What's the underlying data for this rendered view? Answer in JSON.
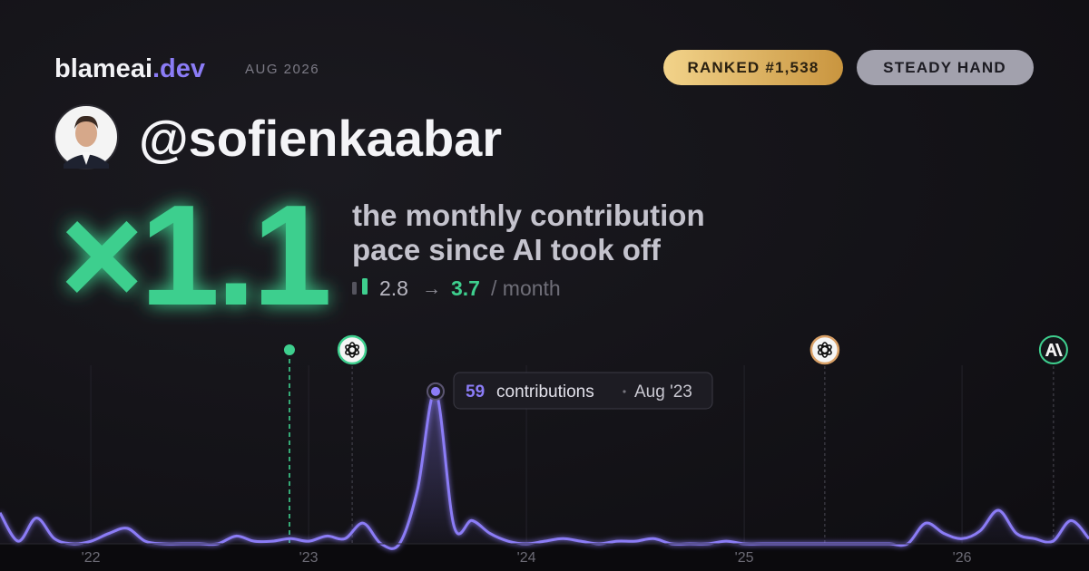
{
  "header": {
    "brand": "blameai",
    "brand_suffix": ".dev",
    "date": "AUG 2026",
    "rank_badge": "RANKED #1,538",
    "style_badge": "STEADY HAND",
    "handle": "@sofienkaabar",
    "multiplier": "×1.1",
    "description": [
      "the monthly contribution",
      "pace since AI took off"
    ],
    "pace_before": 2.8,
    "pace_arrow": "→",
    "pace_after": 3.7,
    "pace_unit": "/ month"
  },
  "chart_data": {
    "type": "line",
    "x": [
      2021.583,
      2021.667,
      2021.75,
      2021.833,
      2021.917,
      2022,
      2022.083,
      2022.167,
      2022.25,
      2022.333,
      2022.417,
      2022.5,
      2022.583,
      2022.667,
      2022.75,
      2022.833,
      2022.917,
      2023,
      2023.083,
      2023.167,
      2023.25,
      2023.333,
      2023.417,
      2023.5,
      2023.583,
      2023.667,
      2023.75,
      2023.833,
      2023.917,
      2024,
      2024.083,
      2024.167,
      2024.25,
      2024.333,
      2024.417,
      2024.5,
      2024.583,
      2024.667,
      2024.75,
      2024.833,
      2024.917,
      2025,
      2025.083,
      2025.167,
      2025.25,
      2025.333,
      2025.417,
      2025.5,
      2025.583,
      2025.667,
      2025.75,
      2025.833,
      2025.917,
      2026,
      2026.083,
      2026.167,
      2026.25,
      2026.333,
      2026.417,
      2026.5,
      2026.583
    ],
    "series": [
      {
        "name": "contributions",
        "color": "#8b7cf6",
        "values": [
          12,
          1,
          10,
          2,
          0,
          1,
          4,
          6,
          1,
          0,
          0,
          0,
          0,
          3,
          1,
          1,
          2,
          1,
          3,
          2,
          8,
          0,
          0,
          21,
          59,
          7,
          9,
          4,
          1,
          0,
          1,
          2,
          1,
          0,
          1,
          1,
          2,
          0,
          0,
          0,
          1,
          0,
          0,
          0,
          0,
          0,
          0,
          0,
          0,
          0,
          0,
          8,
          4,
          2,
          5,
          13,
          4,
          2,
          1,
          9,
          2
        ]
      }
    ],
    "xlim": [
      2021.583,
      2026.583
    ],
    "xticks": [
      {
        "value": 2022,
        "label": "'22"
      },
      {
        "value": 2023,
        "label": "'23"
      },
      {
        "value": 2024,
        "label": "'24"
      },
      {
        "value": 2025,
        "label": "'25"
      },
      {
        "value": 2026,
        "label": "'26"
      }
    ],
    "ylim": [
      0,
      60
    ],
    "grid": true,
    "events": [
      {
        "x": 2022.912,
        "color": "#3ecf8e"
      },
      {
        "x": 2023.2,
        "color": "#3ecf8e"
      },
      {
        "x": 2025.37,
        "color": "#d9a066"
      },
      {
        "x": 2026.42,
        "color": "#3ecf8e"
      }
    ],
    "tooltip": {
      "x": 2023.583,
      "label": "Aug '23"
    }
  }
}
